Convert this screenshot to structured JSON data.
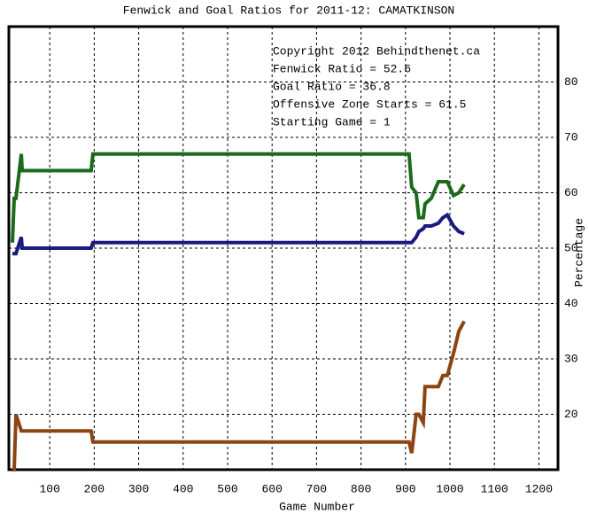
{
  "chart_data": {
    "type": "line",
    "title": "Fenwick and Goal Ratios for 2011-12: CAMATKINSON",
    "x_label": "Game Number",
    "y_label": "Percentage",
    "annotations": [
      {
        "text": "Copyright 2012 Behindthenet.ca",
        "color": "#000000"
      },
      {
        "text": "Fenwick Ratio = 52.6",
        "color": "#1a1a80"
      },
      {
        "text": "Goal Ratio = 36.8",
        "color": "#8b4513"
      },
      {
        "text": "Offensive Zone Starts = 61.5",
        "color": "#1a6b1a"
      },
      {
        "text": "Starting Game = 1",
        "color": "#000000"
      }
    ],
    "x": [
      16,
      20,
      24,
      36,
      38,
      42,
      193,
      197,
      908,
      914,
      924,
      930,
      940,
      944,
      958,
      974,
      984,
      994,
      1008,
      1020,
      1032
    ],
    "series": [
      {
        "name": "Offensive Zone Starts",
        "color": "#1a6b1a",
        "values": [
          51,
          59,
          59,
          67,
          64,
          64,
          64,
          67,
          67,
          61,
          60,
          55.5,
          55.5,
          58,
          59,
          62,
          62,
          62,
          59.5,
          60,
          61.5
        ]
      },
      {
        "name": "Fenwick Ratio",
        "color": "#1a1a80",
        "values": [
          49,
          49,
          49,
          52,
          50,
          50,
          50,
          51,
          51,
          51,
          52,
          53,
          53.5,
          54,
          54,
          54.5,
          55.5,
          56,
          54,
          53,
          52.6
        ]
      },
      {
        "name": "Goal Ratio",
        "color": "#8b4513",
        "values": [
          10,
          10,
          20,
          17,
          17,
          17,
          17,
          15,
          15,
          13,
          20,
          20,
          18.5,
          25,
          25,
          25,
          27,
          27,
          31,
          35,
          36.8
        ]
      }
    ],
    "xlim": [
      8,
      1243
    ],
    "ylim": [
      10,
      90
    ],
    "xticks": [
      100,
      200,
      300,
      400,
      500,
      600,
      700,
      800,
      900,
      1000,
      1100,
      1200
    ],
    "yticks": [
      20,
      30,
      40,
      50,
      60,
      70,
      80
    ],
    "grid": true
  }
}
